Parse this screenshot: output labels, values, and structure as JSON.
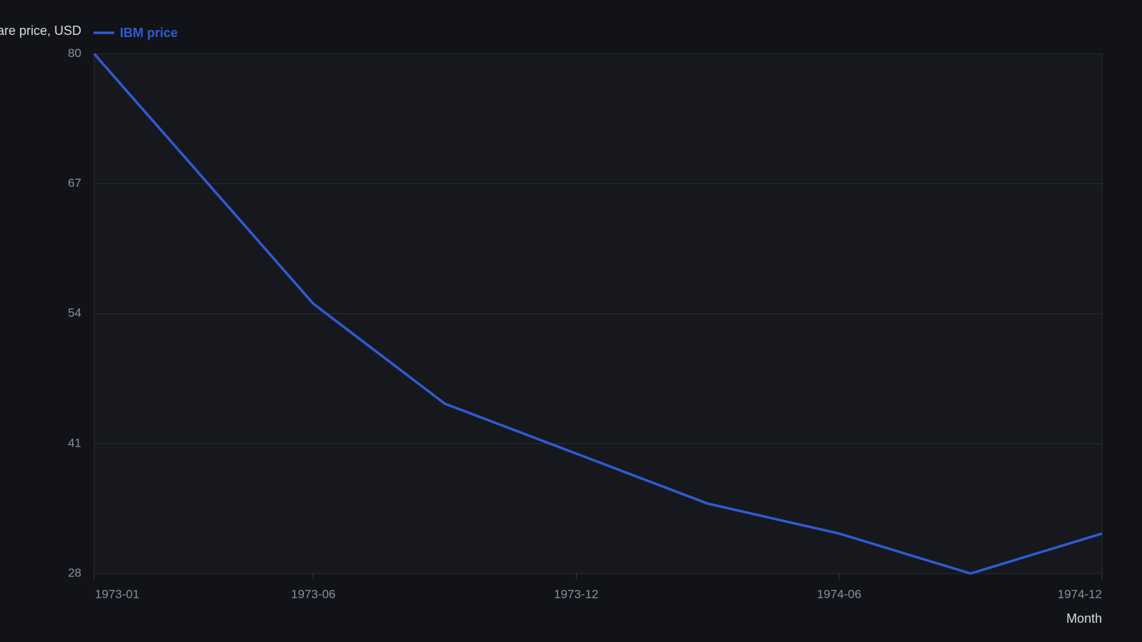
{
  "chart_data": {
    "type": "line",
    "y_label": "Share price, USD",
    "x_label": "Month",
    "x": [
      "1973-01",
      "1973-06",
      "1973-09",
      "1973-12",
      "1974-03",
      "1974-06",
      "1974-09",
      "1974-12"
    ],
    "series": [
      {
        "name": "IBM price",
        "color": "#2f5bd3",
        "values": [
          80,
          55,
          45,
          40,
          35,
          32,
          28,
          32
        ]
      }
    ],
    "xlim": [
      "1973-01",
      "1974-12"
    ],
    "xticks": [
      "1973-01",
      "1973-06",
      "1973-12",
      "1974-06",
      "1974-12"
    ],
    "ylim": [
      28,
      80
    ],
    "yticks": [
      28,
      41,
      54,
      67,
      80
    ],
    "grid": true
  }
}
